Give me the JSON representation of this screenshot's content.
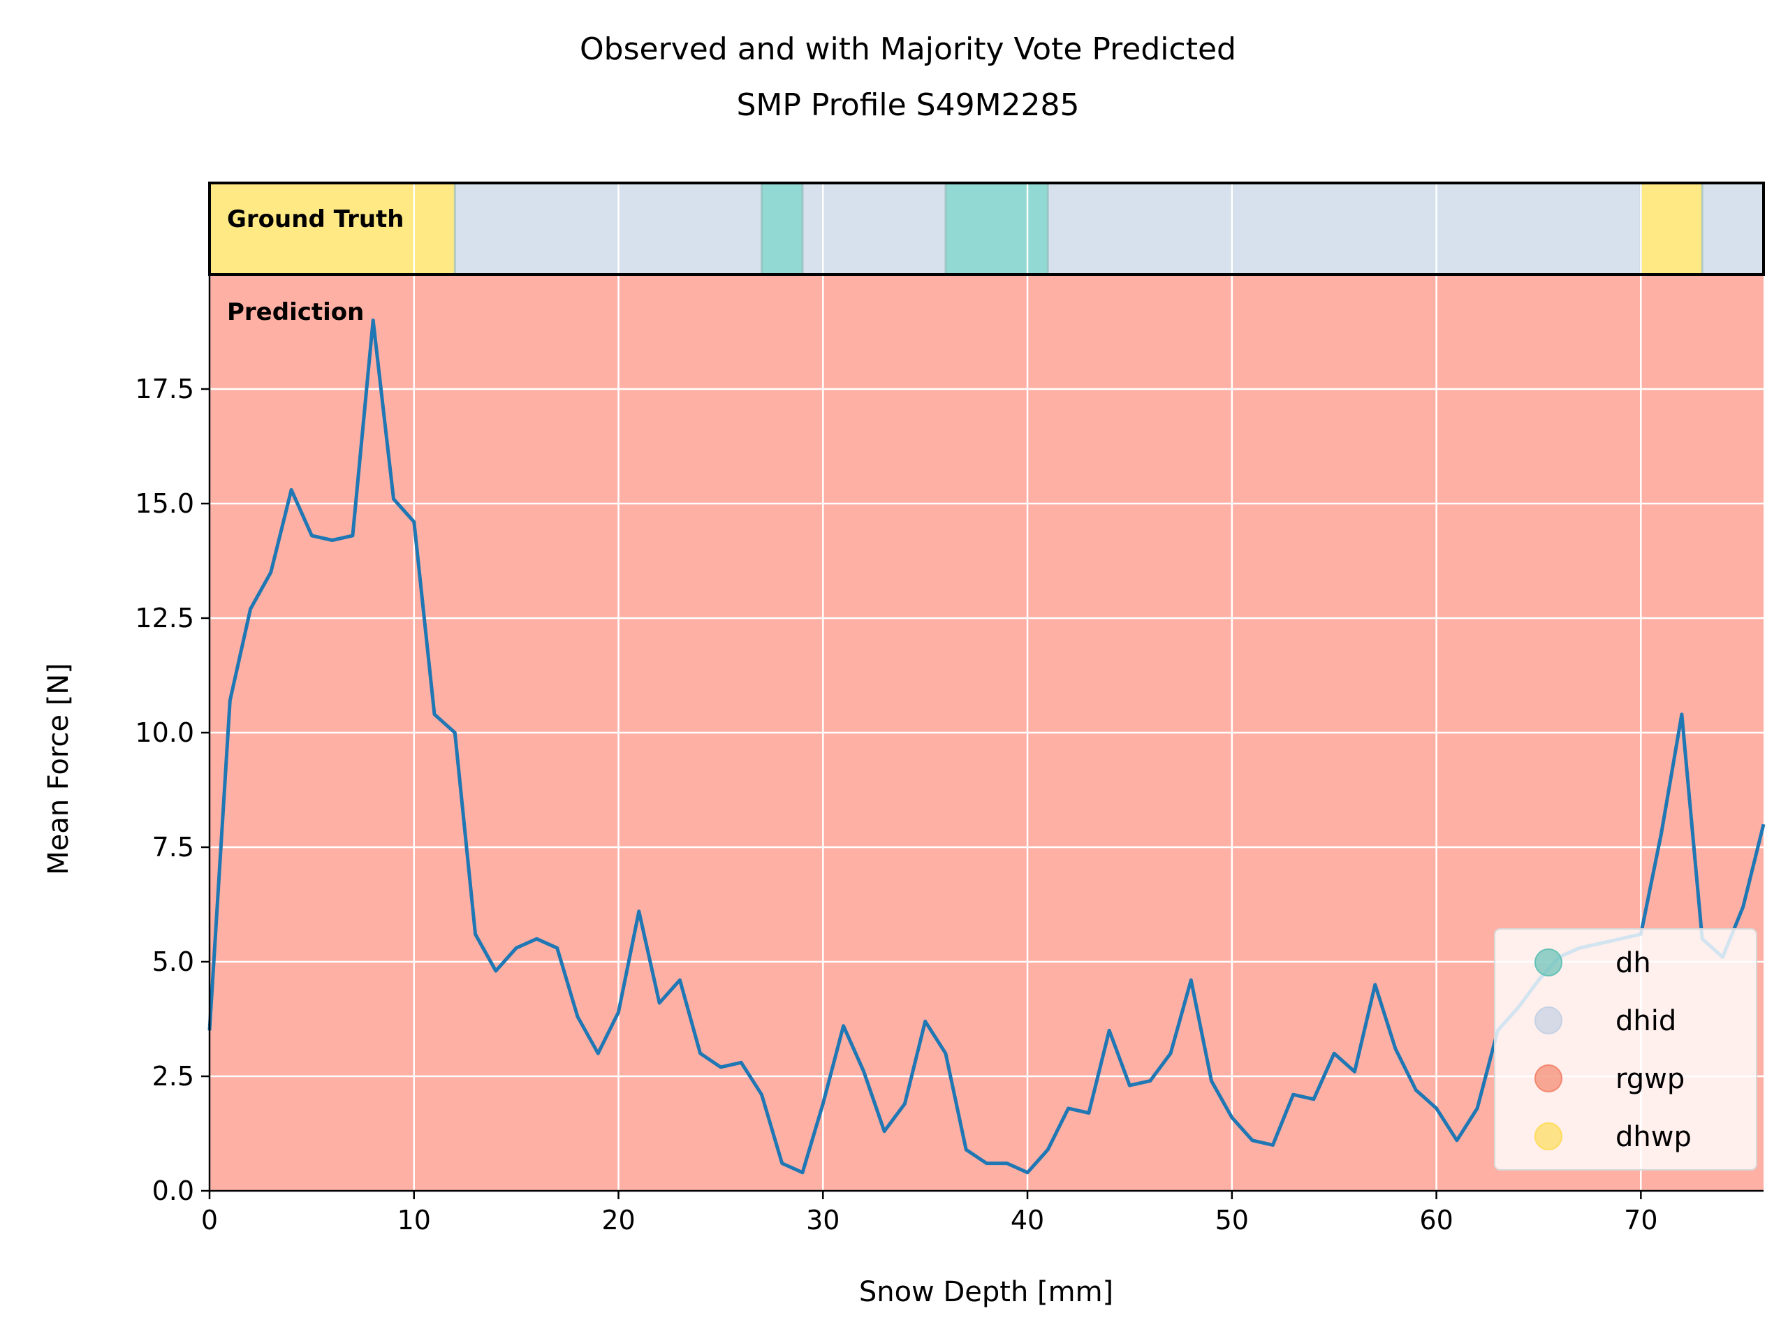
{
  "chart_data": {
    "type": "line",
    "title": "Observed and with Majority Vote Predicted",
    "subtitle": "SMP Profile S49M2285",
    "xlabel": "Snow Depth [mm]",
    "ylabel": "Mean Force [N]",
    "xlim": [
      0,
      76
    ],
    "ylim": [
      0,
      20
    ],
    "xticks": [
      0,
      10,
      20,
      30,
      40,
      50,
      60,
      70
    ],
    "xtick_labels": [
      "0",
      "10",
      "20",
      "30",
      "40",
      "50",
      "60",
      "70"
    ],
    "yticks": [
      0,
      2.5,
      5,
      7.5,
      10,
      12.5,
      15,
      17.5
    ],
    "ytick_labels": [
      "0.0",
      "2.5",
      "5.0",
      "7.5",
      "10.0",
      "12.5",
      "15.0",
      "17.5"
    ],
    "grid": true,
    "legend_position": "lower-right",
    "series": [
      {
        "color": "#1f77b4",
        "x": [
          0,
          1,
          2,
          3,
          4,
          5,
          6,
          7,
          8,
          9,
          10,
          11,
          12,
          13,
          14,
          15,
          16,
          17,
          18,
          19,
          20,
          21,
          22,
          23,
          24,
          25,
          26,
          27,
          28,
          29,
          30,
          31,
          32,
          33,
          34,
          35,
          36,
          37,
          38,
          39,
          40,
          41,
          42,
          43,
          44,
          45,
          46,
          47,
          48,
          49,
          50,
          51,
          52,
          53,
          54,
          55,
          56,
          57,
          58,
          59,
          60,
          61,
          62,
          63,
          64,
          65,
          66,
          67,
          68,
          69,
          70,
          71,
          72,
          73,
          74,
          75,
          76
        ],
        "y": [
          3.5,
          10.7,
          12.7,
          13.5,
          15.3,
          14.3,
          14.2,
          14.3,
          19.0,
          15.1,
          14.6,
          10.4,
          10.0,
          5.6,
          4.8,
          5.3,
          5.5,
          5.3,
          3.8,
          3.0,
          3.9,
          6.1,
          4.1,
          4.6,
          3.0,
          2.7,
          2.8,
          2.1,
          0.6,
          0.4,
          1.9,
          3.6,
          2.6,
          1.3,
          1.9,
          3.7,
          3.0,
          0.9,
          0.6,
          0.6,
          0.4,
          0.9,
          1.8,
          1.7,
          3.5,
          2.3,
          2.4,
          3.0,
          4.6,
          2.4,
          1.6,
          1.1,
          1.0,
          2.1,
          2.0,
          3.0,
          2.6,
          4.5,
          3.1,
          2.2,
          1.8,
          1.1,
          1.8,
          3.5,
          4.0,
          4.6,
          5.1,
          5.3,
          5.4,
          5.5,
          5.6,
          7.8,
          10.4,
          5.5,
          5.1,
          6.2,
          8.0
        ]
      }
    ],
    "ground_truth_segments": [
      {
        "start": 0,
        "end": 12,
        "label": "dhwp"
      },
      {
        "start": 12,
        "end": 27,
        "label": "dhid"
      },
      {
        "start": 27,
        "end": 29,
        "label": "dh"
      },
      {
        "start": 29,
        "end": 36,
        "label": "dhid"
      },
      {
        "start": 36,
        "end": 41,
        "label": "dh"
      },
      {
        "start": 41,
        "end": 70,
        "label": "dhid"
      },
      {
        "start": 70,
        "end": 73,
        "label": "dhwp"
      },
      {
        "start": 73,
        "end": 76,
        "label": "dhid"
      }
    ],
    "prediction_segments": [
      {
        "start": 0,
        "end": 76,
        "label": "rgwp"
      }
    ],
    "band_labels": {
      "ground_truth": "Ground Truth",
      "prediction": "Prediction"
    },
    "legend": [
      {
        "label": "dh",
        "color": "#66c2b6"
      },
      {
        "label": "dhid",
        "color": "#c5d2e4"
      },
      {
        "label": "rgwp",
        "color": "#f4876e"
      },
      {
        "label": "dhwp",
        "color": "#fedd5c"
      }
    ],
    "colors": {
      "dh": "#91d9d2",
      "dhid": "#d6e1ed",
      "rgwp": "#ffb0a5",
      "dhwp": "#ffe985"
    }
  }
}
